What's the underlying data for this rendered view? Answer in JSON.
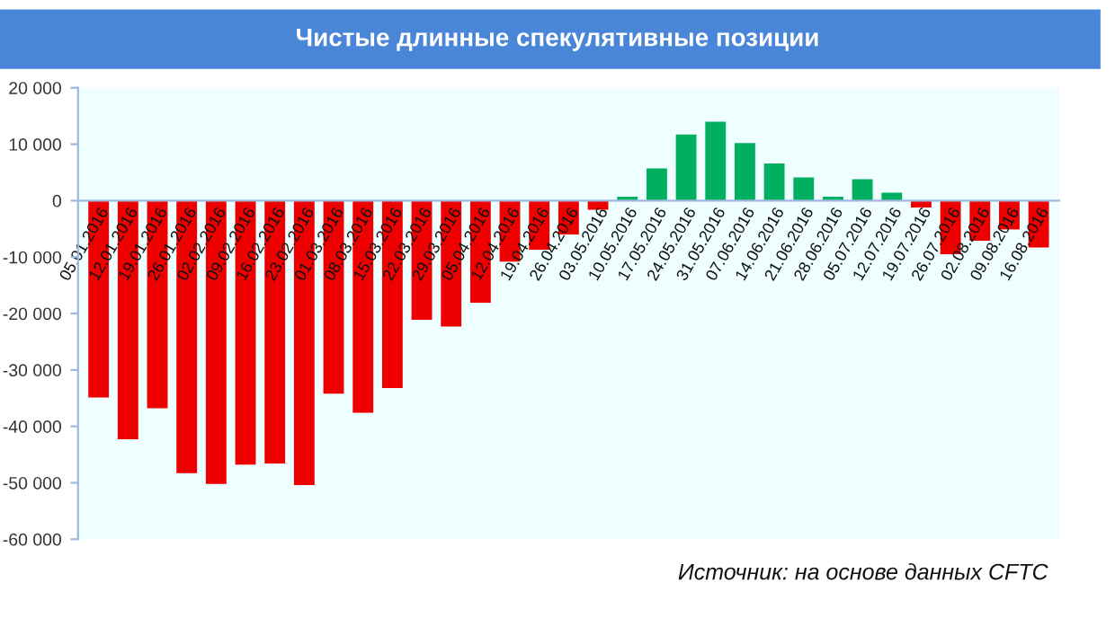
{
  "chart_data": {
    "type": "bar",
    "title": "Чистые длинные спекулятивные позиции",
    "categories": [
      "05.01.2016",
      "12.01.2016",
      "19.01.2016",
      "26.01.2016",
      "02.02.2016",
      "09.02.2016",
      "16.02.2016",
      "23.02.2016",
      "01.03.2016",
      "08.03.2016",
      "15.03.2016",
      "22.03.2016",
      "29.03.2016",
      "05.04.2016",
      "12.04.2016",
      "19.04.2016",
      "26.04.2016",
      "03.05.2016",
      "10.05.2016",
      "17.05.2016",
      "24.05.2016",
      "31.05.2016",
      "07.06.2016",
      "14.06.2016",
      "21.06.2016",
      "28.06.2016",
      "05.07.2016",
      "12.07.2016",
      "19.07.2016",
      "26.07.2016",
      "02.08.2016",
      "09.08.2016",
      "16.08.2016"
    ],
    "values": [
      -34900,
      -42300,
      -36800,
      -48300,
      -50200,
      -46800,
      -46600,
      -50400,
      -34200,
      -37600,
      -33200,
      -21100,
      -22300,
      -18100,
      -10800,
      -8700,
      -6000,
      -1600,
      700,
      5700,
      11700,
      14000,
      10200,
      6600,
      4100,
      700,
      3800,
      1400,
      -1200,
      -9500,
      -7100,
      -5100,
      -8300
    ],
    "colors": [
      "#ee0000",
      "#ee0000",
      "#ee0000",
      "#ee0000",
      "#ee0000",
      "#ee0000",
      "#ee0000",
      "#ee0000",
      "#ee0000",
      "#ee0000",
      "#ee0000",
      "#ee0000",
      "#ee0000",
      "#ee0000",
      "#ee0000",
      "#ee0000",
      "#ee0000",
      "#ee0000",
      "#00b060",
      "#00b060",
      "#00b060",
      "#00b060",
      "#00b060",
      "#00b060",
      "#00b060",
      "#00b060",
      "#00b060",
      "#00b060",
      "#ee0000",
      "#ee0000",
      "#ee0000",
      "#ee0000",
      "#ee0000"
    ],
    "ylim": [
      -60000,
      20000
    ],
    "yticks": [
      {
        "value": -60000,
        "label": "-60 000"
      },
      {
        "value": -50000,
        "label": "-50 000"
      },
      {
        "value": -40000,
        "label": "-40 000"
      },
      {
        "value": -30000,
        "label": "-30 000"
      },
      {
        "value": -20000,
        "label": "-20 000"
      },
      {
        "value": -10000,
        "label": "-10 000"
      },
      0,
      {
        "value": 10000,
        "label": "10 000"
      },
      {
        "value": 20000,
        "label": "20 000"
      }
    ],
    "grid": false,
    "annotations": [
      "Источник: на основе данных CFTC"
    ]
  }
}
